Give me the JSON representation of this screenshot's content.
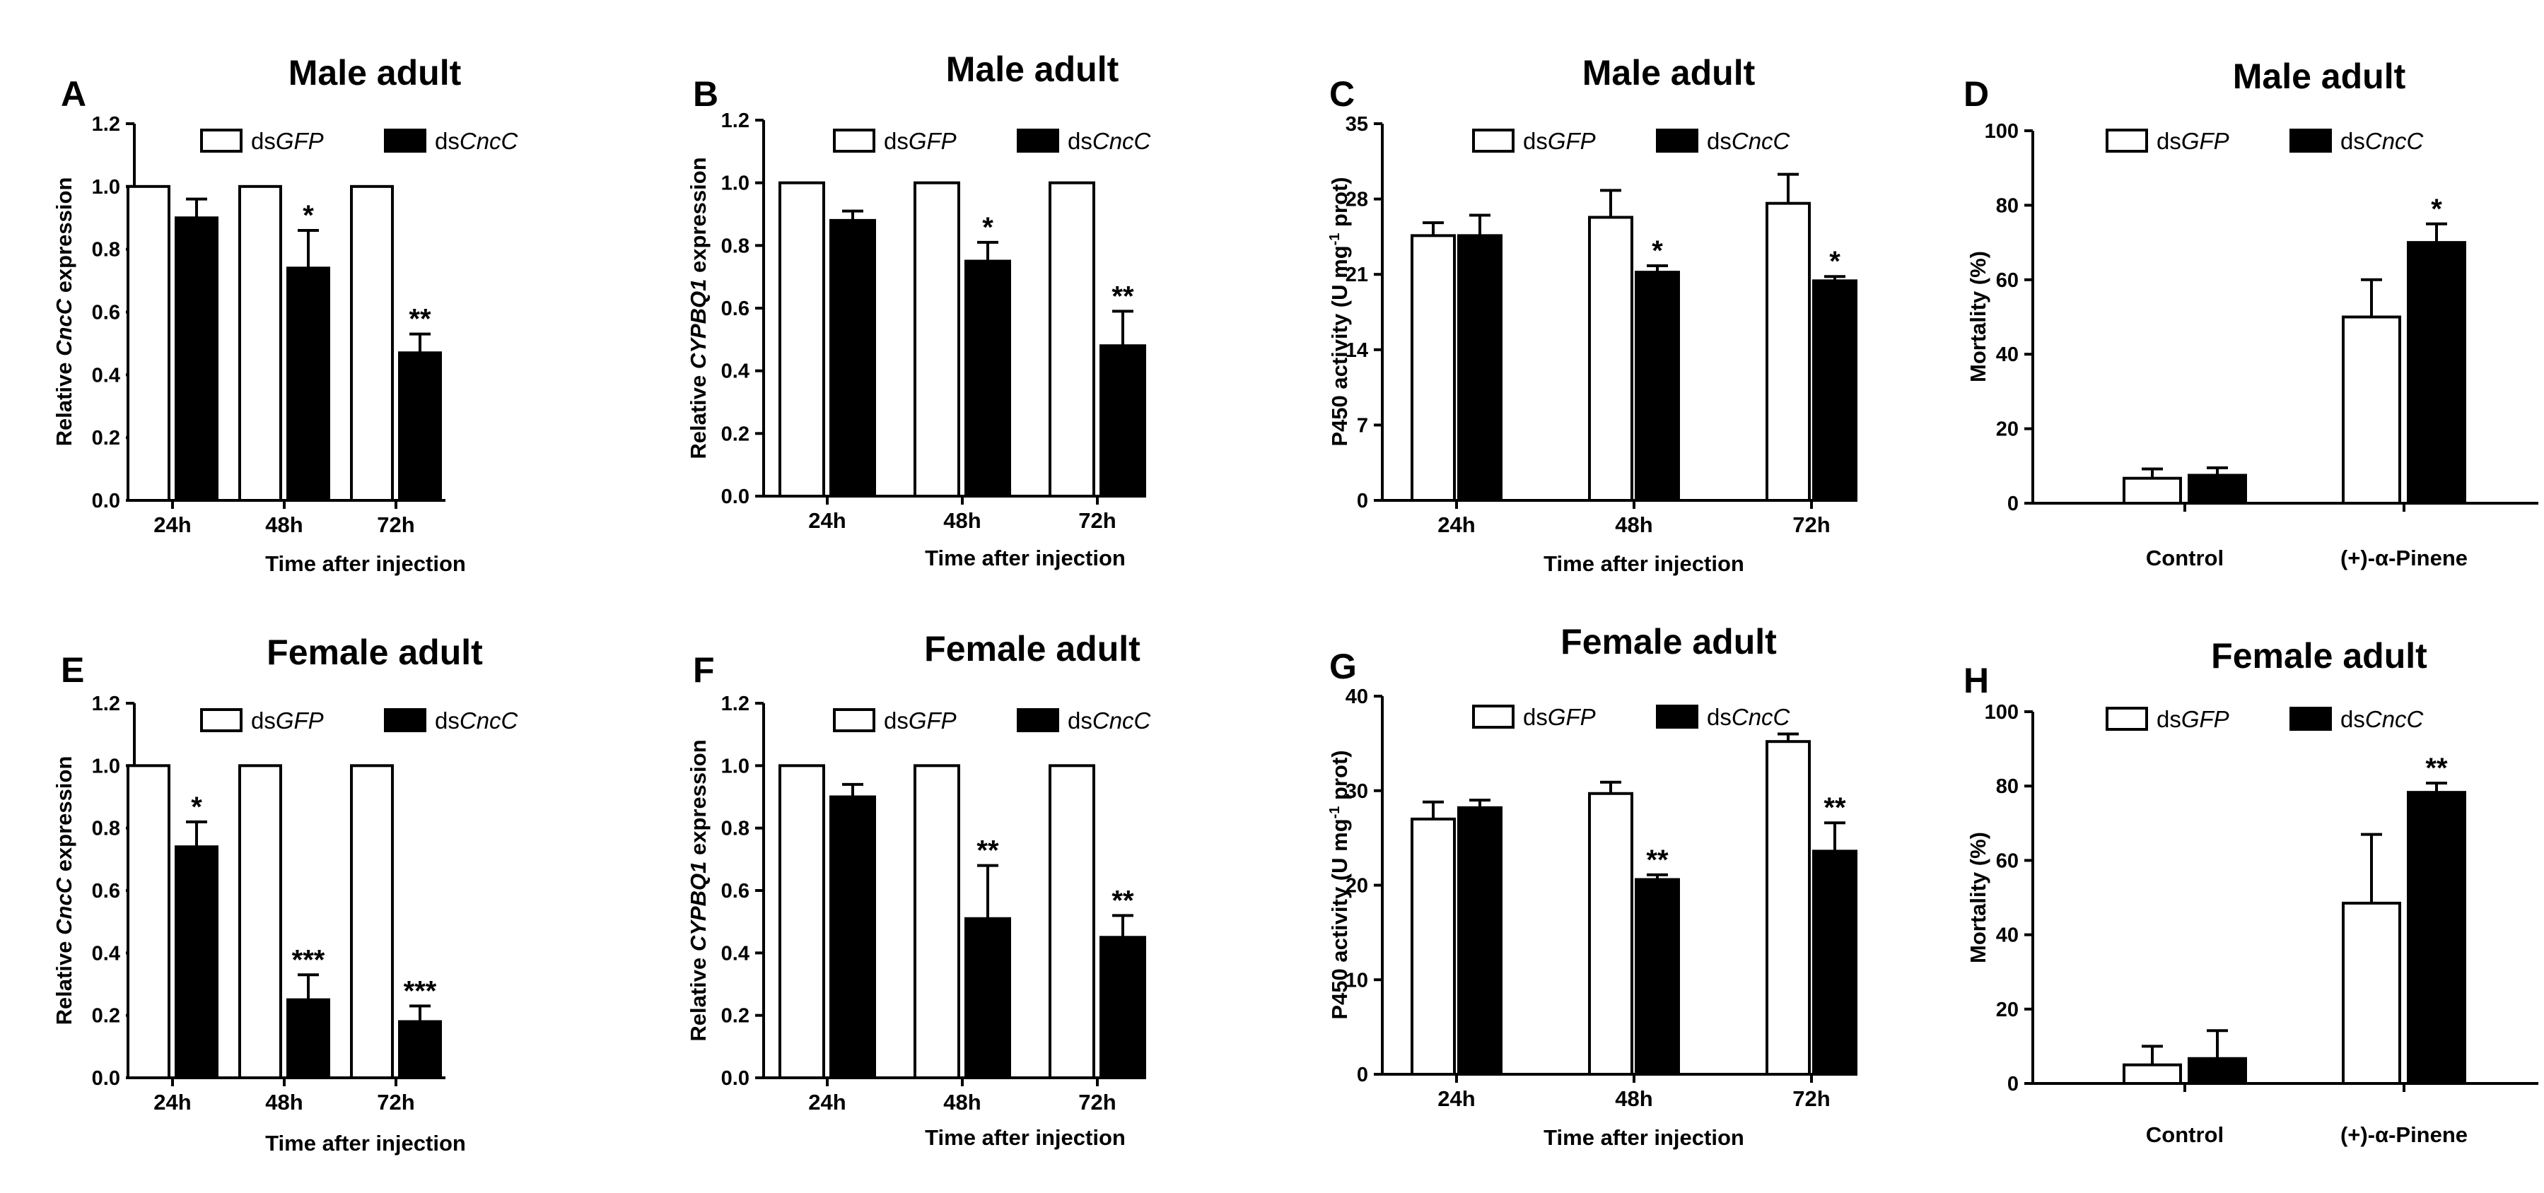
{
  "chart_data": [
    {
      "panel": "A",
      "type": "bar",
      "title": "Male adult",
      "xlabel": "Time after injection",
      "ylabel": {
        "pre": "Relative ",
        "em": "CncC",
        "post": " expression"
      },
      "categories": [
        "24h",
        "48h",
        "72h"
      ],
      "ylim": [
        0,
        1.2
      ],
      "yticks": [
        "0.0",
        "0.2",
        "0.4",
        "0.6",
        "0.8",
        "1.0",
        "1.2"
      ],
      "ytick_values": [
        0,
        0.2,
        0.4,
        0.6,
        0.8,
        1.0,
        1.2
      ],
      "series": [
        {
          "name": {
            "pre": "ds",
            "em": "GFP"
          },
          "fill": "#ffffff",
          "values": [
            1.0,
            1.0,
            1.0
          ],
          "errors": [
            0,
            0,
            0
          ]
        },
        {
          "name": {
            "pre": "ds",
            "em": "CncC"
          },
          "fill": "#000000",
          "values": [
            0.9,
            0.74,
            0.47
          ],
          "errors": [
            0.06,
            0.12,
            0.06
          ]
        }
      ],
      "significance": [
        "",
        "*",
        "**"
      ]
    },
    {
      "panel": "B",
      "type": "bar",
      "title": "Male adult",
      "xlabel": "Time after injection",
      "ylabel": {
        "pre": "Relative ",
        "em": "CYPBQ1",
        "post": " expression"
      },
      "categories": [
        "24h",
        "48h",
        "72h"
      ],
      "ylim": [
        0,
        1.2
      ],
      "yticks": [
        "0.0",
        "0.2",
        "0.4",
        "0.6",
        "0.8",
        "1.0",
        "1.2"
      ],
      "ytick_values": [
        0,
        0.2,
        0.4,
        0.6,
        0.8,
        1.0,
        1.2
      ],
      "series": [
        {
          "name": {
            "pre": "ds",
            "em": "GFP"
          },
          "fill": "#ffffff",
          "values": [
            1.0,
            1.0,
            1.0
          ],
          "errors": [
            0,
            0,
            0
          ]
        },
        {
          "name": {
            "pre": "ds",
            "em": "CncC"
          },
          "fill": "#000000",
          "values": [
            0.88,
            0.75,
            0.48
          ],
          "errors": [
            0.03,
            0.06,
            0.11
          ]
        }
      ],
      "significance": [
        "",
        "*",
        "**"
      ]
    },
    {
      "panel": "C",
      "type": "bar",
      "title": "Male adult",
      "xlabel": "Time after injection",
      "ylabel": {
        "pre": "P450 activity (U mg",
        "sup": "-1",
        "post": " prot)"
      },
      "categories": [
        "24h",
        "48h",
        "72h"
      ],
      "ylim": [
        0,
        35
      ],
      "yticks": [
        "0",
        "7",
        "14",
        "21",
        "28",
        "35"
      ],
      "ytick_values": [
        0,
        7,
        14,
        21,
        28,
        35
      ],
      "series": [
        {
          "name": {
            "pre": "ds",
            "em": "GFP"
          },
          "fill": "#ffffff",
          "values": [
            24.6,
            26.3,
            27.6
          ],
          "errors": [
            1.2,
            2.5,
            2.7
          ]
        },
        {
          "name": {
            "pre": "ds",
            "em": "CncC"
          },
          "fill": "#000000",
          "values": [
            24.6,
            21.2,
            20.4
          ],
          "errors": [
            1.9,
            0.6,
            0.4
          ]
        }
      ],
      "significance": [
        "",
        "*",
        "*"
      ]
    },
    {
      "panel": "D",
      "type": "bar",
      "title": "Male adult",
      "xlabel": "",
      "ylabel": {
        "pre": "Mortality (%)"
      },
      "categories": [
        "Control",
        "(+)-α-Pinene"
      ],
      "ylim": [
        0,
        100
      ],
      "yticks": [
        "0",
        "20",
        "40",
        "60",
        "80",
        "100"
      ],
      "ytick_values": [
        0,
        20,
        40,
        60,
        80,
        100
      ],
      "series": [
        {
          "name": {
            "pre": "ds",
            "em": "GFP"
          },
          "fill": "#ffffff",
          "values": [
            6.7,
            50.0
          ],
          "errors": [
            2.5,
            10.0
          ]
        },
        {
          "name": {
            "pre": "ds",
            "em": "CncC"
          },
          "fill": "#000000",
          "values": [
            7.5,
            70.0
          ],
          "errors": [
            2.0,
            5.0
          ]
        }
      ],
      "significance": [
        "",
        "*"
      ]
    },
    {
      "panel": "E",
      "type": "bar",
      "title": "Female adult",
      "xlabel": "Time after injection",
      "ylabel": {
        "pre": "Relative ",
        "em": "CncC",
        "post": " expression"
      },
      "categories": [
        "24h",
        "48h",
        "72h"
      ],
      "ylim": [
        0,
        1.2
      ],
      "yticks": [
        "0.0",
        "0.2",
        "0.4",
        "0.6",
        "0.8",
        "1.0",
        "1.2"
      ],
      "ytick_values": [
        0,
        0.2,
        0.4,
        0.6,
        0.8,
        1.0,
        1.2
      ],
      "series": [
        {
          "name": {
            "pre": "ds",
            "em": "GFP"
          },
          "fill": "#ffffff",
          "values": [
            1.0,
            1.0,
            1.0
          ],
          "errors": [
            0,
            0,
            0
          ]
        },
        {
          "name": {
            "pre": "ds",
            "em": "CncC"
          },
          "fill": "#000000",
          "values": [
            0.74,
            0.25,
            0.18
          ],
          "errors": [
            0.08,
            0.08,
            0.05
          ]
        }
      ],
      "significance": [
        "*",
        "***",
        "***"
      ]
    },
    {
      "panel": "F",
      "type": "bar",
      "title": "Female adult",
      "xlabel": "Time after injection",
      "ylabel": {
        "pre": "Relative ",
        "em": "CYPBQ1",
        "post": " expression"
      },
      "categories": [
        "24h",
        "48h",
        "72h"
      ],
      "ylim": [
        0,
        1.2
      ],
      "yticks": [
        "0.0",
        "0.2",
        "0.4",
        "0.6",
        "0.8",
        "1.0",
        "1.2"
      ],
      "ytick_values": [
        0,
        0.2,
        0.4,
        0.6,
        0.8,
        1.0,
        1.2
      ],
      "series": [
        {
          "name": {
            "pre": "ds",
            "em": "GFP"
          },
          "fill": "#ffffff",
          "values": [
            1.0,
            1.0,
            1.0
          ],
          "errors": [
            0,
            0,
            0
          ]
        },
        {
          "name": {
            "pre": "ds",
            "em": "CncC"
          },
          "fill": "#000000",
          "values": [
            0.9,
            0.51,
            0.45
          ],
          "errors": [
            0.04,
            0.17,
            0.07
          ]
        }
      ],
      "significance": [
        "",
        "**",
        "**"
      ]
    },
    {
      "panel": "G",
      "type": "bar",
      "title": "Female adult",
      "xlabel": "Time after injection",
      "ylabel": {
        "pre": "P450 activity (U mg",
        "sup": "-1",
        "post": " prot)"
      },
      "categories": [
        "24h",
        "48h",
        "72h"
      ],
      "ylim": [
        0,
        40
      ],
      "yticks": [
        "0",
        "10",
        "20",
        "30",
        "40"
      ],
      "ytick_values": [
        0,
        10,
        20,
        30,
        40
      ],
      "series": [
        {
          "name": {
            "pre": "ds",
            "em": "GFP"
          },
          "fill": "#ffffff",
          "values": [
            27.0,
            29.7,
            35.2
          ],
          "errors": [
            1.8,
            1.2,
            0.8
          ]
        },
        {
          "name": {
            "pre": "ds",
            "em": "CncC"
          },
          "fill": "#000000",
          "values": [
            28.2,
            20.6,
            23.6
          ],
          "errors": [
            0.8,
            0.5,
            3.0
          ]
        }
      ],
      "significance": [
        "",
        "**",
        "**"
      ]
    },
    {
      "panel": "H",
      "type": "bar",
      "title": "Female adult",
      "xlabel": "",
      "ylabel": {
        "pre": "Mortality (%)"
      },
      "categories": [
        "Control",
        "(+)-α-Pinene"
      ],
      "ylim": [
        0,
        100
      ],
      "yticks": [
        "0",
        "20",
        "40",
        "60",
        "80",
        "100"
      ],
      "ytick_values": [
        0,
        20,
        40,
        60,
        80,
        100
      ],
      "series": [
        {
          "name": {
            "pre": "ds",
            "em": "GFP"
          },
          "fill": "#ffffff",
          "values": [
            5.0,
            48.5
          ],
          "errors": [
            5.0,
            18.5
          ]
        },
        {
          "name": {
            "pre": "ds",
            "em": "CncC"
          },
          "fill": "#000000",
          "values": [
            6.7,
            78.3
          ],
          "errors": [
            7.5,
            2.5
          ]
        }
      ],
      "significance": [
        "",
        "**"
      ]
    }
  ]
}
